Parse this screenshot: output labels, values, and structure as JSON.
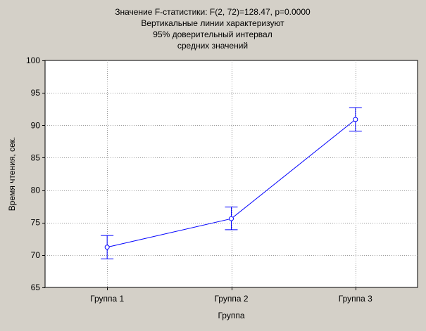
{
  "chart_data": {
    "type": "line",
    "title_lines": [
      "Значение F-статистики:  F(2, 72)=128.47, p=0.0000",
      "Вертикальные линии характеризуют",
      "95% доверительный интервал",
      "средних значений"
    ],
    "xlabel": "Группа",
    "ylabel": "Время чтения, сек.",
    "categories": [
      "Группа 1",
      "Группа 2",
      "Группа 3"
    ],
    "series": [
      {
        "values": [
          71.2,
          75.6,
          90.9
        ],
        "ci_lower": [
          69.4,
          73.9,
          89.1
        ],
        "ci_upper": [
          73.0,
          77.4,
          92.7
        ]
      }
    ],
    "ylim": [
      65,
      100
    ],
    "yticks": [
      65,
      70,
      75,
      80,
      85,
      90,
      95,
      100
    ],
    "grid": true,
    "colors": {
      "background": "#d4d0c8",
      "plot_background": "#ffffff",
      "series": "#0000ff",
      "grid": "#9a9a9a"
    }
  }
}
